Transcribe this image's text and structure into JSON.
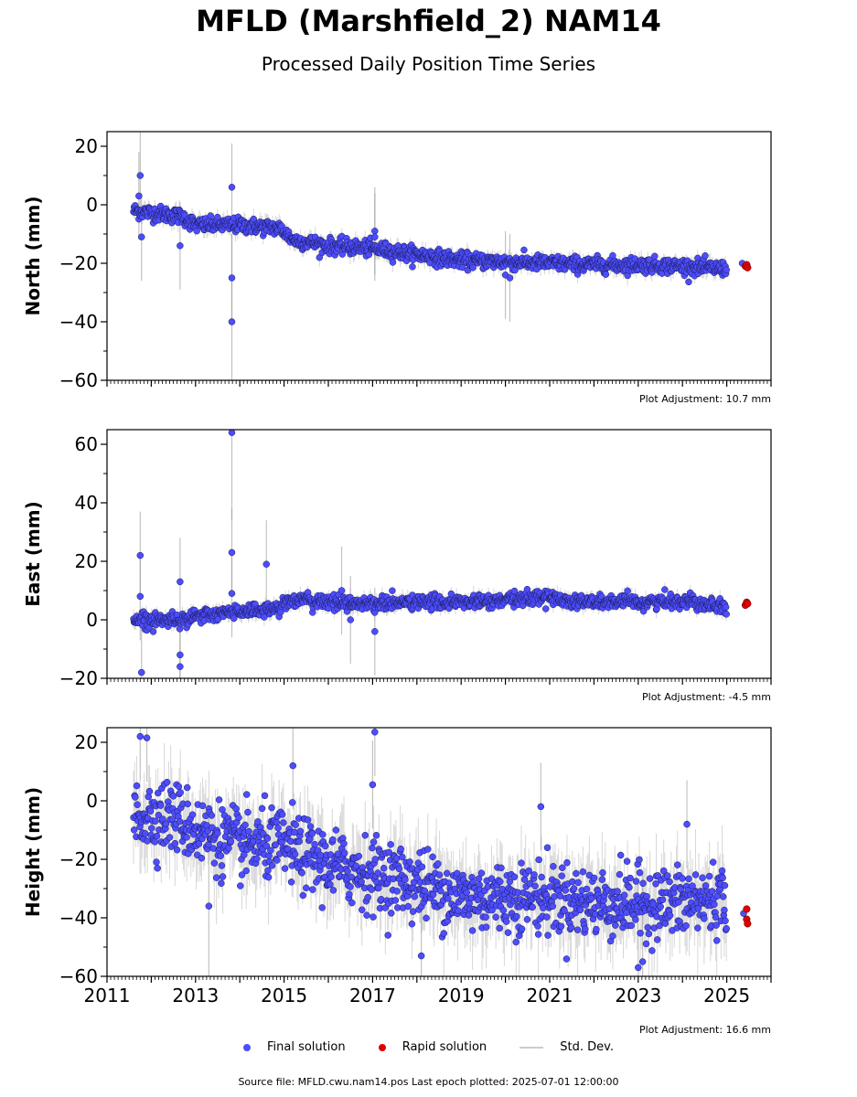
{
  "title": "MFLD (Marshfield_2) NAM14",
  "subtitle": "Processed Daily Position Time Series",
  "legend": {
    "final": "Final solution",
    "rapid": "Rapid solution",
    "std": "Std. Dev."
  },
  "source": "Source file: MFLD.cwu.nam14.pos  Last epoch plotted: 2025-07-01 12:00:00",
  "colors": {
    "final": "#4d4dff",
    "rapid": "#e00000",
    "std": "#bdbdbd"
  },
  "chart_data": [
    {
      "type": "scatter",
      "ylabel": "North (mm)",
      "adjustment": "Plot Adjustment: 10.7 mm",
      "xlim": [
        2011,
        2026
      ],
      "ylim": [
        -60,
        25
      ],
      "yticks": [
        20,
        0,
        -20,
        -40,
        -60
      ],
      "xticks": [
        2011,
        2013,
        2015,
        2017,
        2019,
        2021,
        2023,
        2025
      ],
      "final_trend": [
        [
          2011.6,
          -2
        ],
        [
          2012.7,
          -4
        ],
        [
          2013.0,
          -7
        ],
        [
          2014.0,
          -7
        ],
        [
          2014.9,
          -8
        ],
        [
          2015.2,
          -12
        ],
        [
          2016.0,
          -14
        ],
        [
          2017.0,
          -15
        ],
        [
          2018.0,
          -17
        ],
        [
          2019.0,
          -19
        ],
        [
          2020.0,
          -19.5
        ],
        [
          2021.0,
          -20
        ],
        [
          2022.0,
          -20.5
        ],
        [
          2023.0,
          -20.5
        ],
        [
          2024.0,
          -21
        ],
        [
          2025.0,
          -22
        ]
      ],
      "final_scatter": 1.3,
      "outliers": [
        [
          2011.75,
          10
        ],
        [
          2011.72,
          3
        ],
        [
          2011.78,
          -11
        ],
        [
          2012.65,
          -14
        ],
        [
          2013.82,
          6
        ],
        [
          2013.82,
          -25
        ],
        [
          2013.82,
          -40
        ],
        [
          2017.05,
          -9
        ],
        [
          2017.05,
          -11
        ],
        [
          2020.0,
          -24
        ],
        [
          2020.1,
          -25
        ]
      ],
      "rapid": [
        [
          2025.42,
          -21
        ],
        [
          2025.45,
          -20.5
        ],
        [
          2025.47,
          -21.5
        ]
      ],
      "final_extra": [
        [
          2025.35,
          -20
        ]
      ]
    },
    {
      "type": "scatter",
      "ylabel": "East (mm)",
      "adjustment": "Plot Adjustment: -4.5 mm",
      "xlim": [
        2011,
        2026
      ],
      "ylim": [
        -20,
        65
      ],
      "yticks": [
        60,
        40,
        20,
        0,
        -20
      ],
      "xticks": [
        2011,
        2013,
        2015,
        2017,
        2019,
        2021,
        2023,
        2025
      ],
      "final_trend": [
        [
          2011.6,
          0
        ],
        [
          2012.5,
          0
        ],
        [
          2013.0,
          1
        ],
        [
          2014.0,
          3
        ],
        [
          2014.9,
          4
        ],
        [
          2015.1,
          7
        ],
        [
          2016.0,
          6
        ],
        [
          2017.0,
          5.5
        ],
        [
          2018.0,
          6
        ],
        [
          2019.0,
          6
        ],
        [
          2020.0,
          6.5
        ],
        [
          2020.8,
          8
        ],
        [
          2021.5,
          6.5
        ],
        [
          2022.0,
          6
        ],
        [
          2023.0,
          6
        ],
        [
          2024.0,
          6.5
        ],
        [
          2025.0,
          5
        ]
      ],
      "final_scatter": 1.2,
      "outliers": [
        [
          2011.75,
          22
        ],
        [
          2011.75,
          8
        ],
        [
          2011.78,
          -18
        ],
        [
          2012.65,
          13
        ],
        [
          2012.65,
          -12
        ],
        [
          2012.65,
          -16
        ],
        [
          2013.82,
          64
        ],
        [
          2013.82,
          23
        ],
        [
          2013.82,
          9
        ],
        [
          2014.6,
          19
        ],
        [
          2016.3,
          10
        ],
        [
          2016.5,
          0
        ],
        [
          2017.05,
          -4
        ]
      ],
      "rapid": [
        [
          2025.42,
          5
        ],
        [
          2025.45,
          6
        ],
        [
          2025.47,
          5.5
        ]
      ],
      "final_extra": []
    },
    {
      "type": "scatter",
      "ylabel": "Height (mm)",
      "adjustment": "Plot Adjustment: 16.6 mm",
      "xlim": [
        2011,
        2026
      ],
      "ylim": [
        -60,
        25
      ],
      "yticks": [
        20,
        0,
        -20,
        -40,
        -60
      ],
      "xticks": [
        2011,
        2013,
        2015,
        2017,
        2019,
        2021,
        2023,
        2025
      ],
      "xticklabels": [
        "2011",
        "2013",
        "2015",
        "2017",
        "2019",
        "2021",
        "2023",
        "2025"
      ],
      "final_trend": [
        [
          2011.6,
          -5
        ],
        [
          2012.5,
          -5
        ],
        [
          2013.0,
          -10
        ],
        [
          2014.0,
          -15
        ],
        [
          2015.0,
          -15
        ],
        [
          2016.0,
          -22
        ],
        [
          2017.0,
          -25
        ],
        [
          2018.0,
          -28
        ],
        [
          2019.0,
          -33
        ],
        [
          2020.0,
          -33
        ],
        [
          2021.0,
          -33
        ],
        [
          2022.0,
          -35
        ],
        [
          2023.0,
          -35
        ],
        [
          2024.0,
          -35
        ],
        [
          2025.0,
          -33
        ]
      ],
      "final_scatter": 6,
      "outliers": [
        [
          2011.75,
          22
        ],
        [
          2011.9,
          21.5
        ],
        [
          2017.05,
          23.5
        ],
        [
          2017.0,
          5.5
        ],
        [
          2015.2,
          12
        ],
        [
          2020.8,
          -2
        ],
        [
          2024.1,
          -8
        ],
        [
          2023.0,
          -57
        ],
        [
          2023.1,
          -55
        ],
        [
          2018.1,
          -53
        ],
        [
          2013.3,
          -36
        ]
      ],
      "rapid": [
        [
          2025.45,
          -37
        ],
        [
          2025.45,
          -40.5
        ],
        [
          2025.47,
          -42
        ]
      ],
      "final_extra": [
        [
          2025.38,
          -38.5
        ]
      ]
    }
  ]
}
